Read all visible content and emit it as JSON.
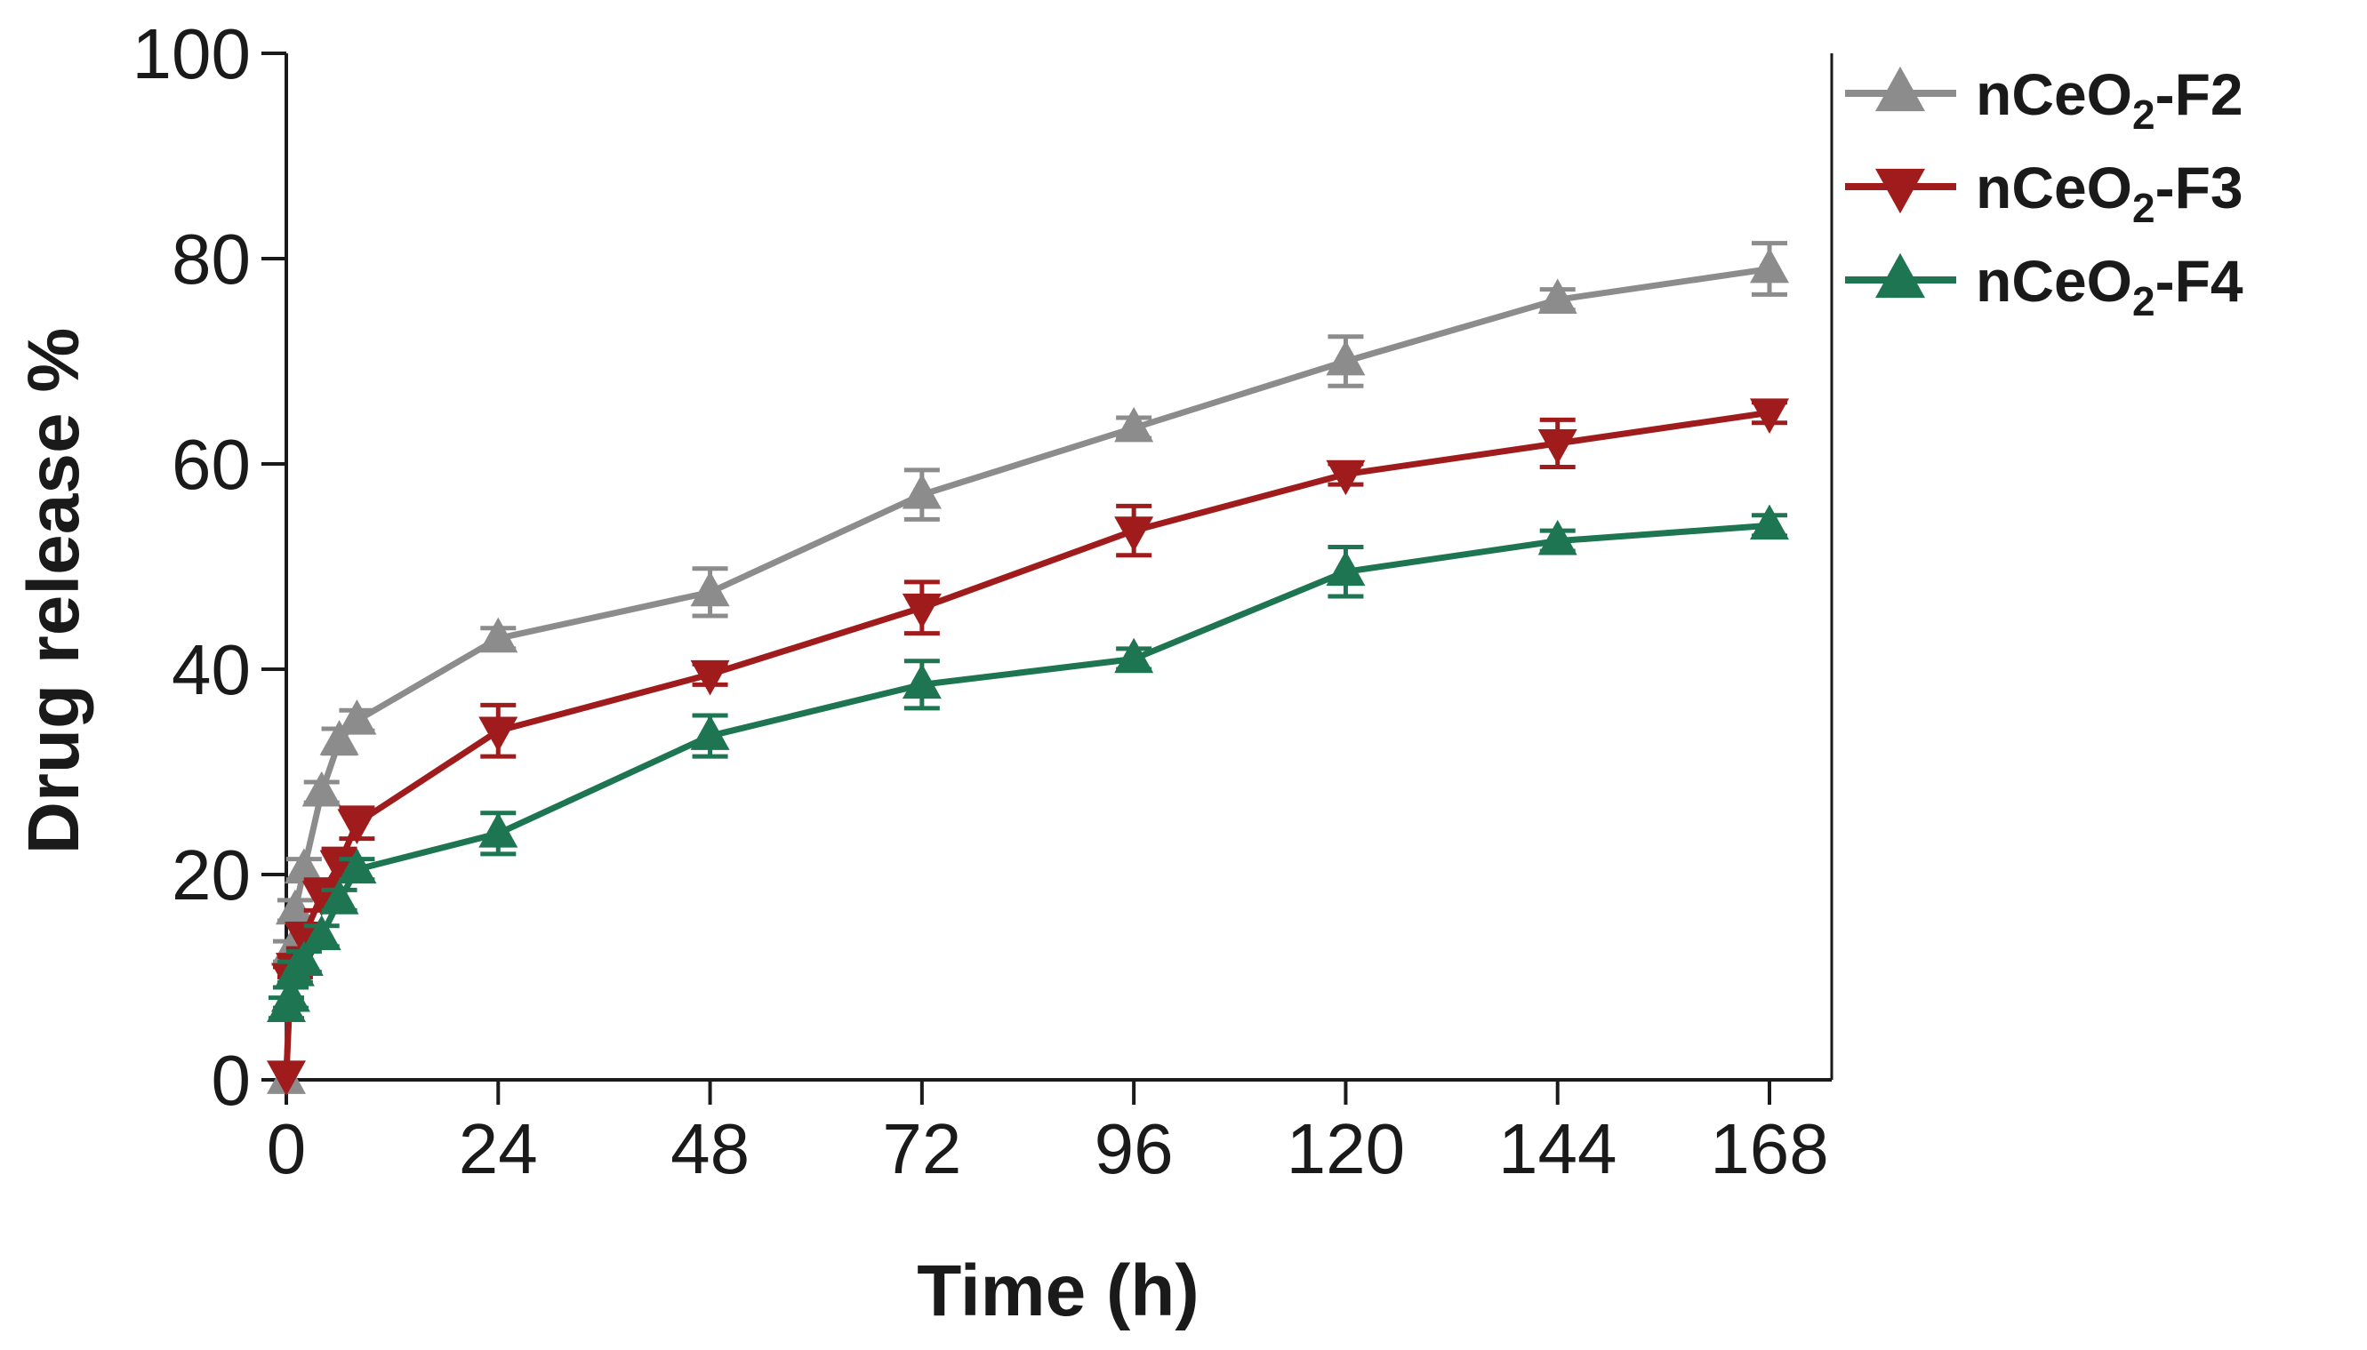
{
  "chart_data": {
    "type": "line",
    "title": "",
    "xlabel": "Time (h)",
    "ylabel": "Drug release %",
    "xlim": [
      0,
      168
    ],
    "ylim": [
      0,
      100
    ],
    "xticks": [
      0,
      24,
      48,
      72,
      96,
      120,
      144,
      168
    ],
    "yticks": [
      0,
      20,
      40,
      60,
      80,
      100
    ],
    "legend_position": "top-right, outside plot",
    "series": [
      {
        "name": "nCeO2-F2",
        "label_main": "nCeO",
        "label_sub": "2",
        "label_tail": "-F2",
        "color": "#8c8c8c",
        "marker": "triangle-up",
        "x": [
          0,
          0.5,
          1,
          2,
          4,
          6,
          8,
          24,
          48,
          72,
          96,
          120,
          144,
          168
        ],
        "y": [
          0,
          12.5,
          16.5,
          20.5,
          28,
          33,
          35,
          43,
          47.5,
          57,
          63.5,
          70,
          76,
          79
        ],
        "err": [
          0,
          1,
          1,
          1,
          1,
          1.2,
          1,
          1,
          2.3,
          2.4,
          1,
          2.4,
          1,
          2.5
        ]
      },
      {
        "name": "nCeO2-F3",
        "label_main": "nCeO",
        "label_sub": "2",
        "label_tail": "-F3",
        "color": "#a01c1c",
        "marker": "triangle-down",
        "x": [
          0,
          0.5,
          1,
          2,
          4,
          6,
          8,
          24,
          48,
          72,
          96,
          120,
          144,
          168
        ],
        "y": [
          0.5,
          10,
          11,
          14,
          18,
          21,
          25,
          34,
          39.5,
          46,
          53.5,
          59,
          62,
          65
        ],
        "err": [
          0,
          1,
          1,
          1.2,
          1.5,
          1.5,
          1.5,
          2.5,
          1,
          2.5,
          2.4,
          1,
          2.3,
          1
        ]
      },
      {
        "name": "nCeO2-F4",
        "label_main": "nCeO",
        "label_sub": "2",
        "label_tail": "-F4",
        "color": "#1d7552",
        "marker": "triangle-up",
        "x": [
          0,
          0.5,
          1,
          2,
          4,
          6,
          8,
          24,
          48,
          72,
          96,
          120,
          144,
          168
        ],
        "y": [
          7,
          8,
          10.5,
          11.5,
          14,
          17.5,
          20.5,
          24,
          33.5,
          38.5,
          41,
          49.5,
          52.5,
          54
        ],
        "err": [
          1,
          1,
          1,
          1,
          1,
          1,
          1,
          2,
          2,
          2.3,
          1,
          2.4,
          1,
          1
        ]
      }
    ]
  }
}
